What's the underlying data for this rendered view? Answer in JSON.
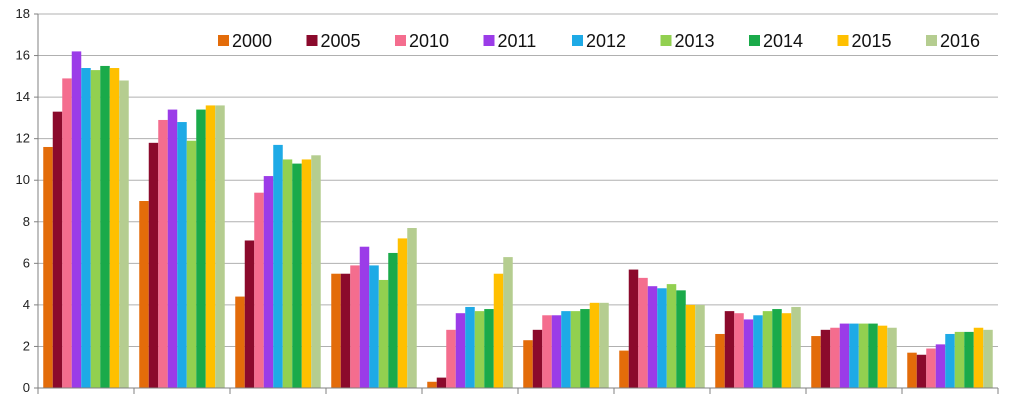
{
  "chart_data": {
    "type": "bar",
    "title": "",
    "xlabel": "",
    "ylabel": "",
    "ylim": [
      0,
      18
    ],
    "yticks": [
      0,
      2,
      4,
      6,
      8,
      10,
      12,
      14,
      16,
      18
    ],
    "grid": true,
    "legend_position": "top-right",
    "categories": [
      "",
      "",
      "",
      "",
      "",
      "",
      "",
      "",
      "",
      ""
    ],
    "series": [
      {
        "name": "2000",
        "color": "#E36C0A",
        "values": [
          11.6,
          9.0,
          4.4,
          5.5,
          0.3,
          2.3,
          1.8,
          2.6,
          2.5,
          1.7
        ]
      },
      {
        "name": "2005",
        "color": "#8B0A2C",
        "values": [
          13.3,
          11.8,
          7.1,
          5.5,
          0.5,
          2.8,
          5.7,
          3.7,
          2.8,
          1.6
        ]
      },
      {
        "name": "2010",
        "color": "#F46D8E",
        "values": [
          14.9,
          12.9,
          9.4,
          5.9,
          2.8,
          3.5,
          5.3,
          3.6,
          2.9,
          1.9
        ]
      },
      {
        "name": "2011",
        "color": "#9B3CE8",
        "values": [
          16.2,
          13.4,
          10.2,
          6.8,
          3.6,
          3.5,
          4.9,
          3.3,
          3.1,
          2.1
        ]
      },
      {
        "name": "2012",
        "color": "#1EAAE6",
        "values": [
          15.4,
          12.8,
          11.7,
          5.9,
          3.9,
          3.7,
          4.8,
          3.5,
          3.1,
          2.6
        ]
      },
      {
        "name": "2013",
        "color": "#92D050",
        "values": [
          15.3,
          11.9,
          11.0,
          5.2,
          3.7,
          3.7,
          5.0,
          3.7,
          3.1,
          2.7
        ]
      },
      {
        "name": "2014",
        "color": "#1AAA4A",
        "values": [
          15.5,
          13.4,
          10.8,
          6.5,
          3.8,
          3.8,
          4.7,
          3.8,
          3.1,
          2.7
        ]
      },
      {
        "name": "2015",
        "color": "#FFC000",
        "values": [
          15.4,
          13.6,
          11.0,
          7.2,
          5.5,
          4.1,
          4.0,
          3.6,
          3.0,
          2.9
        ]
      },
      {
        "name": "2016",
        "color": "#B5CD90",
        "values": [
          14.8,
          13.6,
          11.2,
          7.7,
          6.3,
          4.1,
          4.0,
          3.9,
          2.9,
          2.8
        ]
      }
    ]
  }
}
